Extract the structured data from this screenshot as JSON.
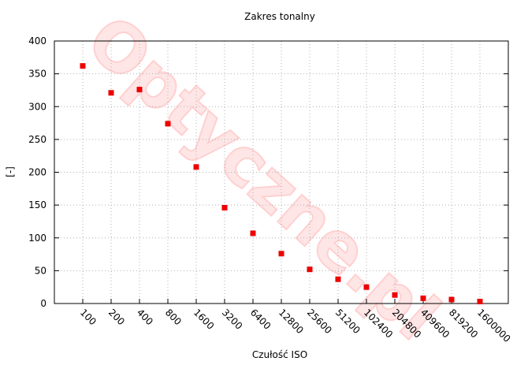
{
  "chart_data": {
    "type": "scatter",
    "title": "Zakres tonalny",
    "x_label": "Czułość ISO",
    "y_label": "[-]",
    "watermark": "Optyczne.pl",
    "categories": [
      "100",
      "200",
      "400",
      "800",
      "1600",
      "3200",
      "6400",
      "12800",
      "25600",
      "51200",
      "102400",
      "204800",
      "409600",
      "819200",
      "1600000"
    ],
    "values": [
      362,
      321,
      326,
      274,
      208,
      146,
      107,
      76,
      52,
      37,
      25,
      13,
      8,
      6,
      3
    ],
    "color": "#ee0000",
    "ylim": [
      0,
      400
    ],
    "yticks": [
      0,
      50,
      100,
      150,
      200,
      250,
      300,
      350,
      400
    ],
    "grid": true
  }
}
